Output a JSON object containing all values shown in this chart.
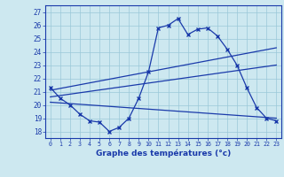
{
  "x": [
    0,
    1,
    2,
    3,
    4,
    5,
    6,
    7,
    8,
    9,
    10,
    11,
    12,
    13,
    14,
    15,
    16,
    17,
    18,
    19,
    20,
    21,
    22,
    23
  ],
  "line_wavy": [
    21.3,
    20.5,
    20.0,
    19.3,
    18.8,
    18.7,
    18.0,
    18.3,
    19.0,
    20.5,
    22.5,
    25.8,
    26.0,
    26.5,
    25.3,
    25.7,
    25.8,
    25.2,
    24.2,
    23.0,
    21.3,
    19.8,
    19.0,
    18.8
  ],
  "line_upper": [
    [
      0,
      21.1
    ],
    [
      23,
      24.3
    ]
  ],
  "line_middle": [
    [
      0,
      20.6
    ],
    [
      23,
      23.0
    ]
  ],
  "line_lower": [
    [
      0,
      20.2
    ],
    [
      23,
      19.0
    ]
  ],
  "ylim": [
    17.5,
    27.5
  ],
  "yticks": [
    18,
    19,
    20,
    21,
    22,
    23,
    24,
    25,
    26,
    27
  ],
  "xticks": [
    0,
    1,
    2,
    3,
    4,
    5,
    6,
    7,
    8,
    9,
    10,
    11,
    12,
    13,
    14,
    15,
    16,
    17,
    18,
    19,
    20,
    21,
    22,
    23
  ],
  "xlabel": "Graphe des températures (°c)",
  "line_color": "#1a3aaa",
  "bg_color": "#cde8f0",
  "grid_color": "#9ac8d8",
  "text_color": "#1a3aaa",
  "marker": "x",
  "title_color": "#1a3aaa"
}
